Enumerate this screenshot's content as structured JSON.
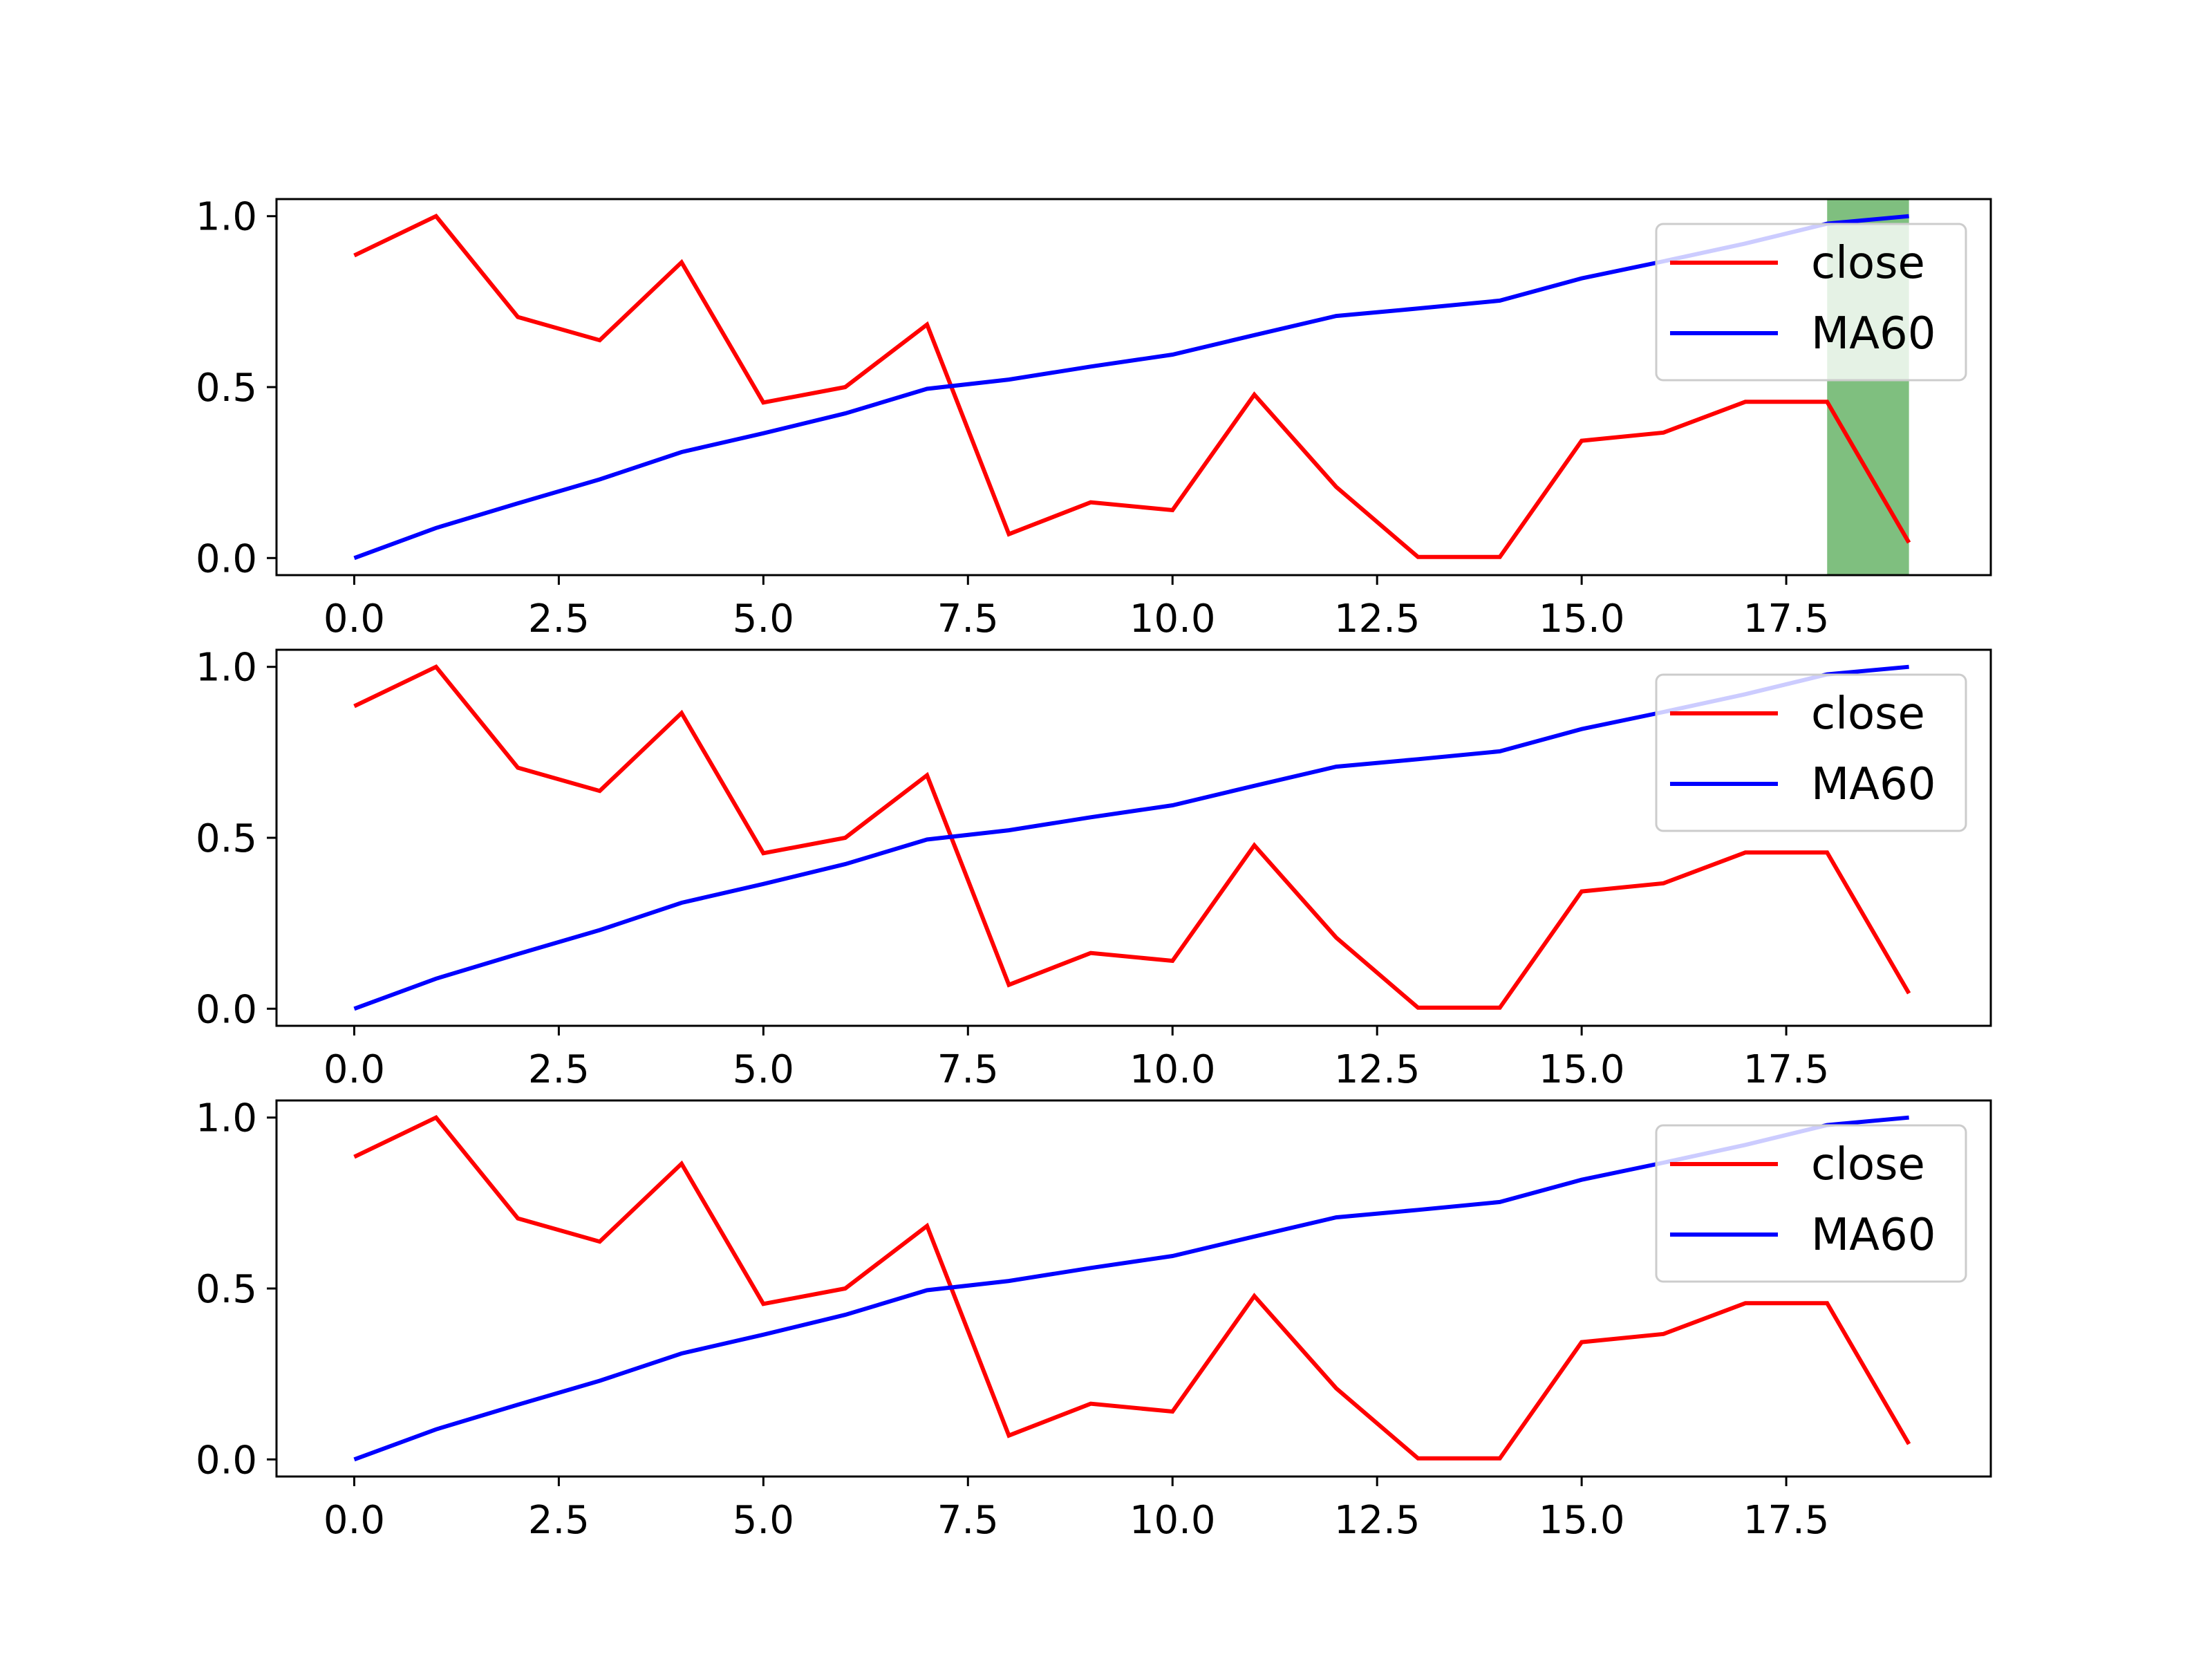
{
  "chart_data": [
    {
      "type": "line",
      "x": [
        0,
        1,
        2,
        3,
        4,
        5,
        6,
        7,
        8,
        9,
        10,
        11,
        12,
        13,
        14,
        15,
        16,
        17,
        18,
        19
      ],
      "xlim": [
        -0.95,
        20
      ],
      "ylim": [
        -0.05,
        1.05
      ],
      "xticks": [
        "0.0",
        "2.5",
        "5.0",
        "7.5",
        "10.0",
        "12.5",
        "15.0",
        "17.5"
      ],
      "yticks": [
        "0.0",
        "0.5",
        "1.0"
      ],
      "series": [
        {
          "name": "close",
          "color": "#ff0000",
          "values": [
            0.885,
            1.0,
            0.705,
            0.637,
            0.865,
            0.455,
            0.5,
            0.683,
            0.07,
            0.163,
            0.14,
            0.478,
            0.208,
            0.003,
            0.003,
            0.343,
            0.367,
            0.457,
            0.457,
            0.045
          ]
        },
        {
          "name": "MA60",
          "color": "#0000ff",
          "values": [
            0.0,
            0.088,
            0.16,
            0.23,
            0.31,
            0.365,
            0.423,
            0.495,
            0.522,
            0.56,
            0.595,
            0.652,
            0.708,
            0.73,
            0.753,
            0.818,
            0.868,
            0.92,
            0.978,
            1.0
          ]
        }
      ],
      "highlight_span": {
        "x": [
          18,
          19
        ],
        "color": "#008000"
      },
      "legend": {
        "placement": "upper right",
        "entries": [
          "close",
          "MA60"
        ]
      },
      "grid": false
    },
    {
      "type": "line",
      "x": [
        0,
        1,
        2,
        3,
        4,
        5,
        6,
        7,
        8,
        9,
        10,
        11,
        12,
        13,
        14,
        15,
        16,
        17,
        18,
        19
      ],
      "xlim": [
        -0.95,
        20
      ],
      "ylim": [
        -0.05,
        1.05
      ],
      "xticks": [
        "0.0",
        "2.5",
        "5.0",
        "7.5",
        "10.0",
        "12.5",
        "15.0",
        "17.5"
      ],
      "yticks": [
        "0.0",
        "0.5",
        "1.0"
      ],
      "series": [
        {
          "name": "close",
          "color": "#ff0000",
          "values": [
            0.885,
            1.0,
            0.705,
            0.637,
            0.865,
            0.455,
            0.5,
            0.683,
            0.07,
            0.163,
            0.14,
            0.478,
            0.208,
            0.003,
            0.003,
            0.343,
            0.367,
            0.457,
            0.457,
            0.045
          ]
        },
        {
          "name": "MA60",
          "color": "#0000ff",
          "values": [
            0.0,
            0.088,
            0.16,
            0.23,
            0.31,
            0.365,
            0.423,
            0.495,
            0.522,
            0.56,
            0.595,
            0.652,
            0.708,
            0.73,
            0.753,
            0.818,
            0.868,
            0.92,
            0.978,
            1.0
          ]
        }
      ],
      "legend": {
        "placement": "upper right",
        "entries": [
          "close",
          "MA60"
        ]
      },
      "grid": false
    },
    {
      "type": "line",
      "x": [
        0,
        1,
        2,
        3,
        4,
        5,
        6,
        7,
        8,
        9,
        10,
        11,
        12,
        13,
        14,
        15,
        16,
        17,
        18,
        19
      ],
      "xlim": [
        -0.95,
        20
      ],
      "ylim": [
        -0.05,
        1.05
      ],
      "xticks": [
        "0.0",
        "2.5",
        "5.0",
        "7.5",
        "10.0",
        "12.5",
        "15.0",
        "17.5"
      ],
      "yticks": [
        "0.0",
        "0.5",
        "1.0"
      ],
      "series": [
        {
          "name": "close",
          "color": "#ff0000",
          "values": [
            0.885,
            1.0,
            0.705,
            0.637,
            0.865,
            0.455,
            0.5,
            0.683,
            0.07,
            0.163,
            0.14,
            0.478,
            0.208,
            0.003,
            0.003,
            0.343,
            0.367,
            0.457,
            0.457,
            0.045
          ]
        },
        {
          "name": "MA60",
          "color": "#0000ff",
          "values": [
            0.0,
            0.088,
            0.16,
            0.23,
            0.31,
            0.365,
            0.423,
            0.495,
            0.522,
            0.56,
            0.595,
            0.652,
            0.708,
            0.73,
            0.753,
            0.818,
            0.868,
            0.92,
            0.978,
            1.0
          ]
        }
      ],
      "legend": {
        "placement": "upper right",
        "entries": [
          "close",
          "MA60"
        ]
      },
      "grid": false
    }
  ]
}
